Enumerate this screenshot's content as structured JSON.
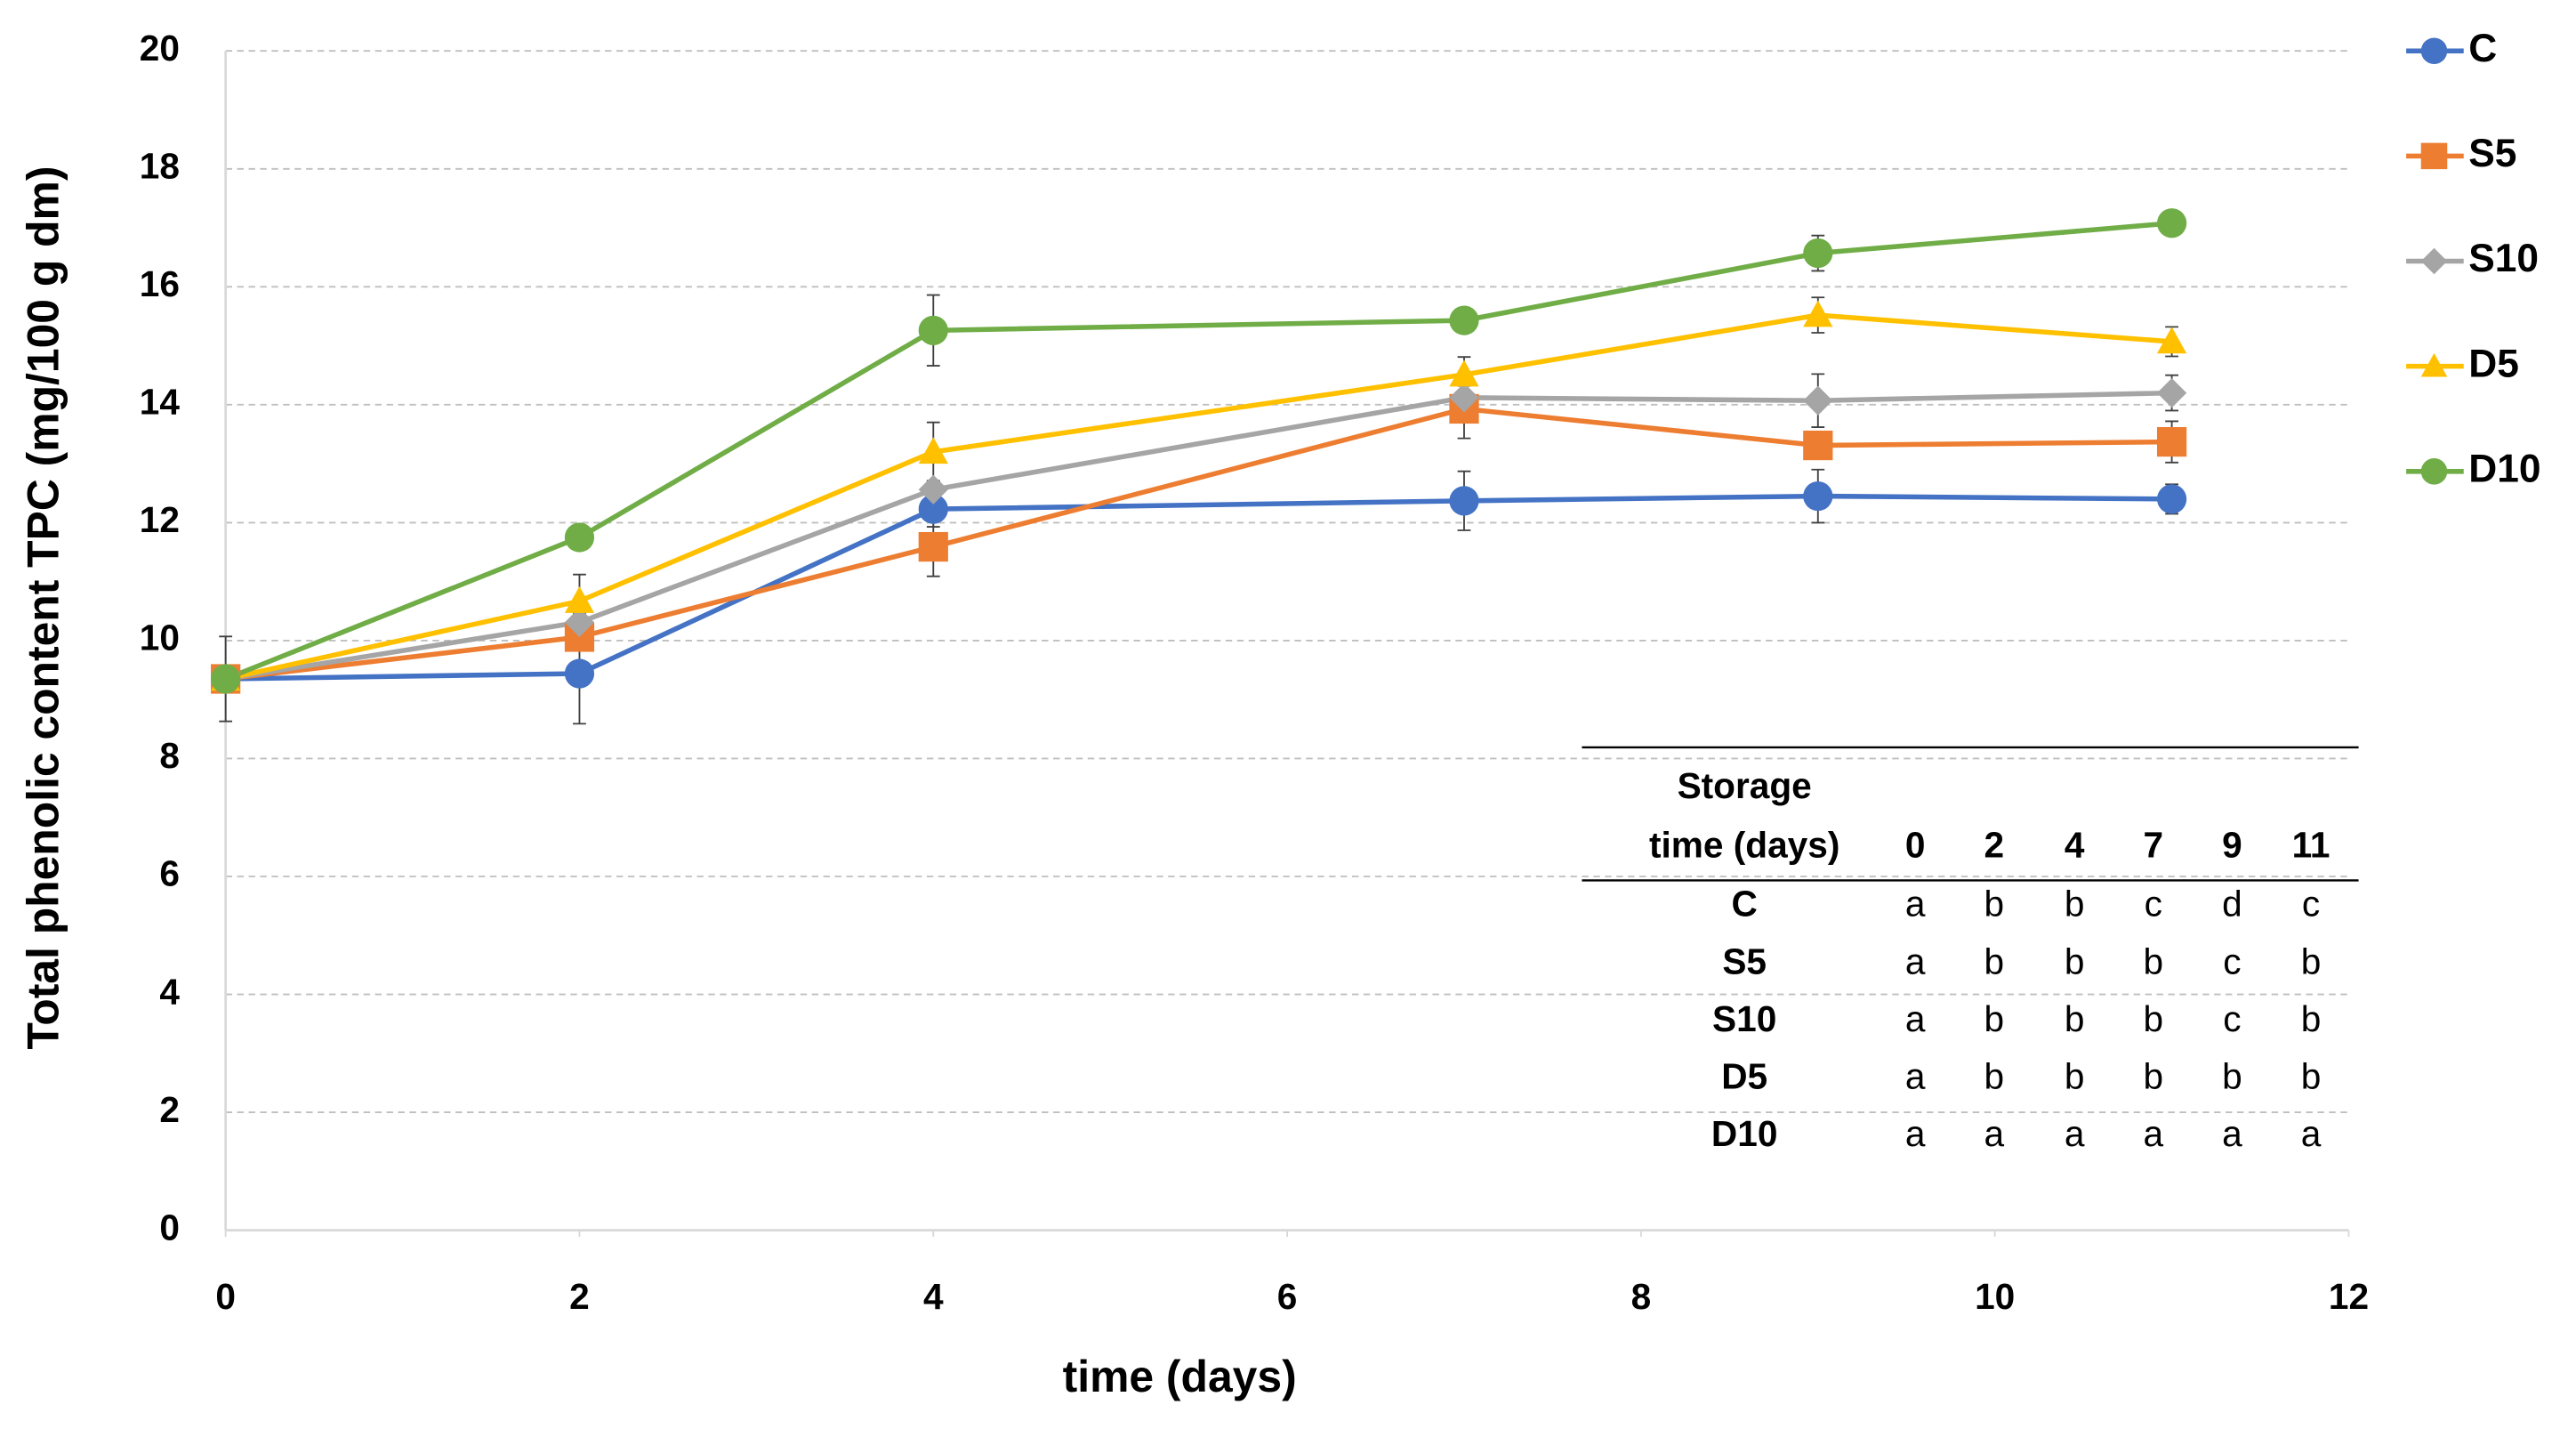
{
  "chart_data": {
    "type": "line",
    "xlabel": "time (days)",
    "ylabel": "Total phenolic content TPC (mg/100 g dm)",
    "x": [
      0,
      2,
      4,
      7,
      9,
      11
    ],
    "xlim": [
      0,
      12
    ],
    "xticks": [
      0,
      2,
      4,
      6,
      8,
      10,
      12
    ],
    "ylim": [
      0,
      20
    ],
    "yticks": [
      0,
      2,
      4,
      6,
      8,
      10,
      12,
      14,
      16,
      18,
      20
    ],
    "grid": true,
    "series": [
      {
        "name": "C",
        "color": "#4472c4",
        "marker": "circle",
        "values": [
          9.35,
          9.44,
          12.23,
          12.37,
          12.45,
          12.4
        ],
        "errors": [
          0.72,
          0.85,
          0.3,
          0.5,
          0.45,
          0.25
        ]
      },
      {
        "name": "S5",
        "color": "#ed7d31",
        "marker": "square",
        "values": [
          9.35,
          10.06,
          11.59,
          13.93,
          13.31,
          13.37
        ],
        "errors": [
          0.2,
          0.2,
          0.5,
          0.5,
          0.2,
          0.35
        ]
      },
      {
        "name": "S10",
        "color": "#a5a5a5",
        "marker": "diamond",
        "values": [
          9.35,
          10.31,
          12.56,
          14.12,
          14.07,
          14.2
        ],
        "errors": [
          0.15,
          0.15,
          0.15,
          0.2,
          0.45,
          0.3
        ]
      },
      {
        "name": "D5",
        "color": "#ffc000",
        "marker": "triangle",
        "values": [
          9.35,
          10.67,
          13.2,
          14.51,
          15.52,
          15.07
        ],
        "errors": [
          0.15,
          0.45,
          0.5,
          0.3,
          0.3,
          0.25
        ]
      },
      {
        "name": "D10",
        "color": "#70ad47",
        "marker": "circle",
        "values": [
          9.35,
          11.75,
          15.26,
          15.43,
          16.57,
          17.08
        ],
        "errors": [
          0.15,
          0.15,
          0.6,
          0.2,
          0.3,
          0.1
        ]
      }
    ],
    "table": {
      "header": [
        "Storage",
        "time (days)"
      ],
      "columns": [
        "0",
        "2",
        "4",
        "7",
        "9",
        "11"
      ],
      "rows": [
        {
          "label": "C",
          "cells": [
            "a",
            "b",
            "b",
            "c",
            "d",
            "c"
          ]
        },
        {
          "label": "S5",
          "cells": [
            "a",
            "b",
            "b",
            "b",
            "c",
            "b"
          ]
        },
        {
          "label": "S10",
          "cells": [
            "a",
            "b",
            "b",
            "b",
            "c",
            "b"
          ]
        },
        {
          "label": "D5",
          "cells": [
            "a",
            "b",
            "b",
            "b",
            "b",
            "b"
          ]
        },
        {
          "label": "D10",
          "cells": [
            "a",
            "a",
            "a",
            "a",
            "a",
            "a"
          ]
        }
      ]
    }
  }
}
